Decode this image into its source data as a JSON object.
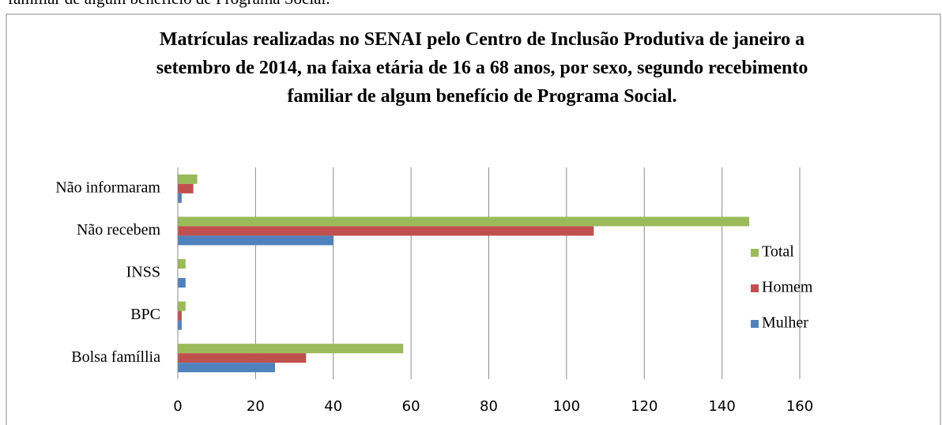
{
  "intro_text": "familiar de algum benefício de Programa Social.",
  "chart_data": {
    "type": "hbar",
    "title": "Matrículas realizadas no SENAI pelo Centro de Inclusão Produtiva de janeiro a setembro de 2014, na faixa etária de 16 a 68 anos, por sexo, segundo recebimento familiar de algum benefício de Programa Social.",
    "categories": [
      "Bolsa famíllia",
      "BPC",
      "INSS",
      "Não recebem",
      "Não informaram"
    ],
    "series": [
      {
        "name": "Total",
        "color": "#9bbb59",
        "values": [
          58,
          2,
          2,
          147,
          5
        ]
      },
      {
        "name": "Homem",
        "color": "#c0504d",
        "values": [
          33,
          1,
          0,
          107,
          4
        ]
      },
      {
        "name": "Mulher",
        "color": "#4f81bd",
        "values": [
          25,
          1,
          2,
          40,
          1
        ]
      }
    ],
    "xlim": [
      0,
      160
    ],
    "xticks": [
      0,
      20,
      40,
      60,
      80,
      100,
      120,
      140,
      160
    ],
    "grid": true,
    "legend": "right"
  }
}
